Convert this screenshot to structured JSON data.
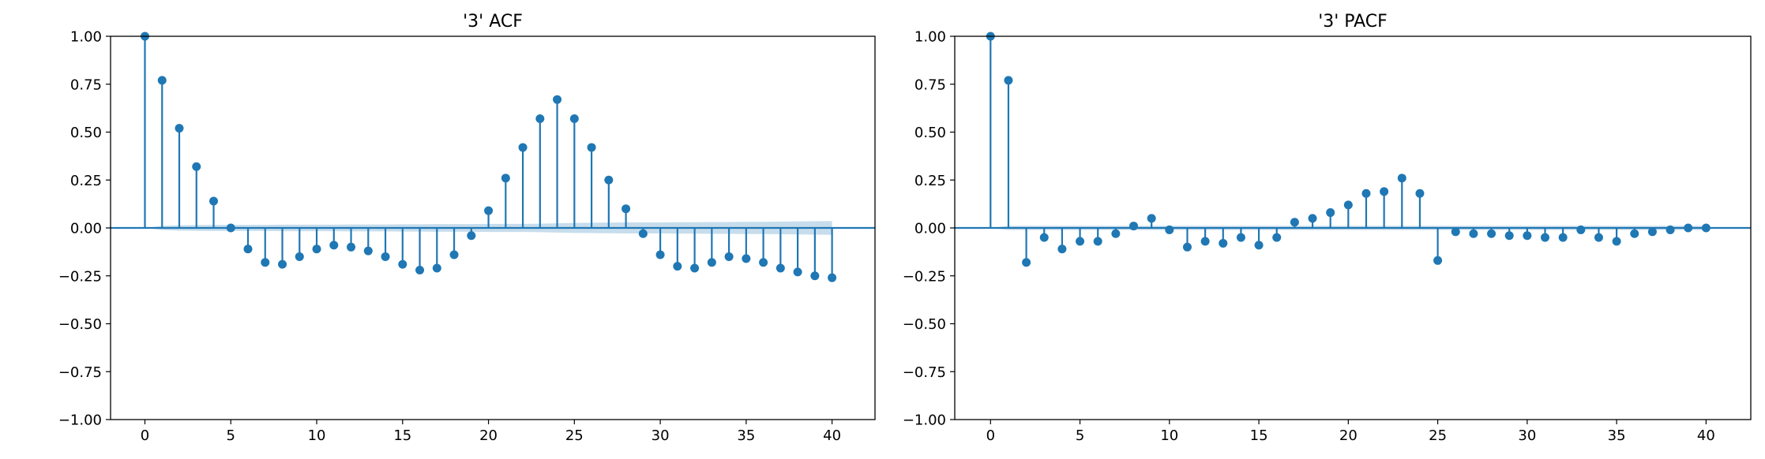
{
  "chart_data": [
    {
      "type": "stem",
      "title": "'3' ACF",
      "xlabel": "",
      "ylabel": "",
      "xlim": [
        -2,
        42.5
      ],
      "ylim": [
        -1.0,
        1.0
      ],
      "xticks": [
        0,
        5,
        10,
        15,
        20,
        25,
        30,
        35,
        40
      ],
      "yticks": [
        -1.0,
        -0.75,
        -0.5,
        -0.25,
        0.0,
        0.25,
        0.5,
        0.75,
        1.0
      ],
      "ytick_labels": [
        "−1.00",
        "−0.75",
        "−0.50",
        "−0.25",
        "0.00",
        "0.25",
        "0.50",
        "0.75",
        "1.00"
      ],
      "grid": false,
      "color": "#1f77b4",
      "lags": [
        0,
        1,
        2,
        3,
        4,
        5,
        6,
        7,
        8,
        9,
        10,
        11,
        12,
        13,
        14,
        15,
        16,
        17,
        18,
        19,
        20,
        21,
        22,
        23,
        24,
        25,
        26,
        27,
        28,
        29,
        30,
        31,
        32,
        33,
        34,
        35,
        36,
        37,
        38,
        39,
        40
      ],
      "values": [
        1.0,
        0.77,
        0.52,
        0.32,
        0.14,
        0.0,
        -0.11,
        -0.18,
        -0.19,
        -0.15,
        -0.11,
        -0.09,
        -0.1,
        -0.12,
        -0.15,
        -0.19,
        -0.22,
        -0.21,
        -0.14,
        -0.04,
        0.09,
        0.26,
        0.42,
        0.57,
        0.67,
        0.57,
        0.42,
        0.25,
        0.1,
        -0.03,
        -0.14,
        -0.2,
        -0.21,
        -0.18,
        -0.15,
        -0.16,
        -0.18,
        -0.21,
        -0.23,
        -0.25,
        -0.26
      ],
      "confidence_band": [
        0.0,
        0.011,
        0.014,
        0.015,
        0.016,
        0.016,
        0.016,
        0.016,
        0.017,
        0.017,
        0.017,
        0.017,
        0.018,
        0.018,
        0.018,
        0.019,
        0.019,
        0.02,
        0.02,
        0.02,
        0.021,
        0.021,
        0.021,
        0.022,
        0.024,
        0.026,
        0.027,
        0.028,
        0.029,
        0.029,
        0.029,
        0.03,
        0.03,
        0.031,
        0.031,
        0.032,
        0.032,
        0.033,
        0.034,
        0.035,
        0.036
      ]
    },
    {
      "type": "stem",
      "title": "'3' PACF",
      "xlabel": "",
      "ylabel": "",
      "xlim": [
        -2,
        42.5
      ],
      "ylim": [
        -1.0,
        1.0
      ],
      "xticks": [
        0,
        5,
        10,
        15,
        20,
        25,
        30,
        35,
        40
      ],
      "yticks": [
        -1.0,
        -0.75,
        -0.5,
        -0.25,
        0.0,
        0.25,
        0.5,
        0.75,
        1.0
      ],
      "ytick_labels": [
        "−1.00",
        "−0.75",
        "−0.50",
        "−0.25",
        "0.00",
        "0.25",
        "0.50",
        "0.75",
        "1.00"
      ],
      "grid": false,
      "color": "#1f77b4",
      "lags": [
        0,
        1,
        2,
        3,
        4,
        5,
        6,
        7,
        8,
        9,
        10,
        11,
        12,
        13,
        14,
        15,
        16,
        17,
        18,
        19,
        20,
        21,
        22,
        23,
        24,
        25,
        26,
        27,
        28,
        29,
        30,
        31,
        32,
        33,
        34,
        35,
        36,
        37,
        38,
        39,
        40
      ],
      "values": [
        1.0,
        0.77,
        -0.18,
        -0.05,
        -0.11,
        -0.07,
        -0.07,
        -0.03,
        0.01,
        0.05,
        -0.01,
        -0.1,
        -0.07,
        -0.08,
        -0.05,
        -0.09,
        -0.05,
        0.03,
        0.05,
        0.08,
        0.12,
        0.18,
        0.19,
        0.26,
        0.18,
        -0.17,
        -0.02,
        -0.03,
        -0.03,
        -0.04,
        -0.04,
        -0.05,
        -0.05,
        -0.01,
        -0.05,
        -0.07,
        -0.03,
        -0.02,
        -0.01,
        0.0,
        0.0
      ],
      "confidence_band": [
        0.0,
        0.011,
        0.011,
        0.011,
        0.011,
        0.011,
        0.011,
        0.011,
        0.011,
        0.011,
        0.011,
        0.011,
        0.011,
        0.011,
        0.011,
        0.011,
        0.011,
        0.011,
        0.011,
        0.011,
        0.011,
        0.011,
        0.011,
        0.011,
        0.011,
        0.011,
        0.011,
        0.011,
        0.011,
        0.011,
        0.011,
        0.011,
        0.011,
        0.011,
        0.011,
        0.011,
        0.011,
        0.011,
        0.011,
        0.011,
        0.011
      ]
    }
  ]
}
